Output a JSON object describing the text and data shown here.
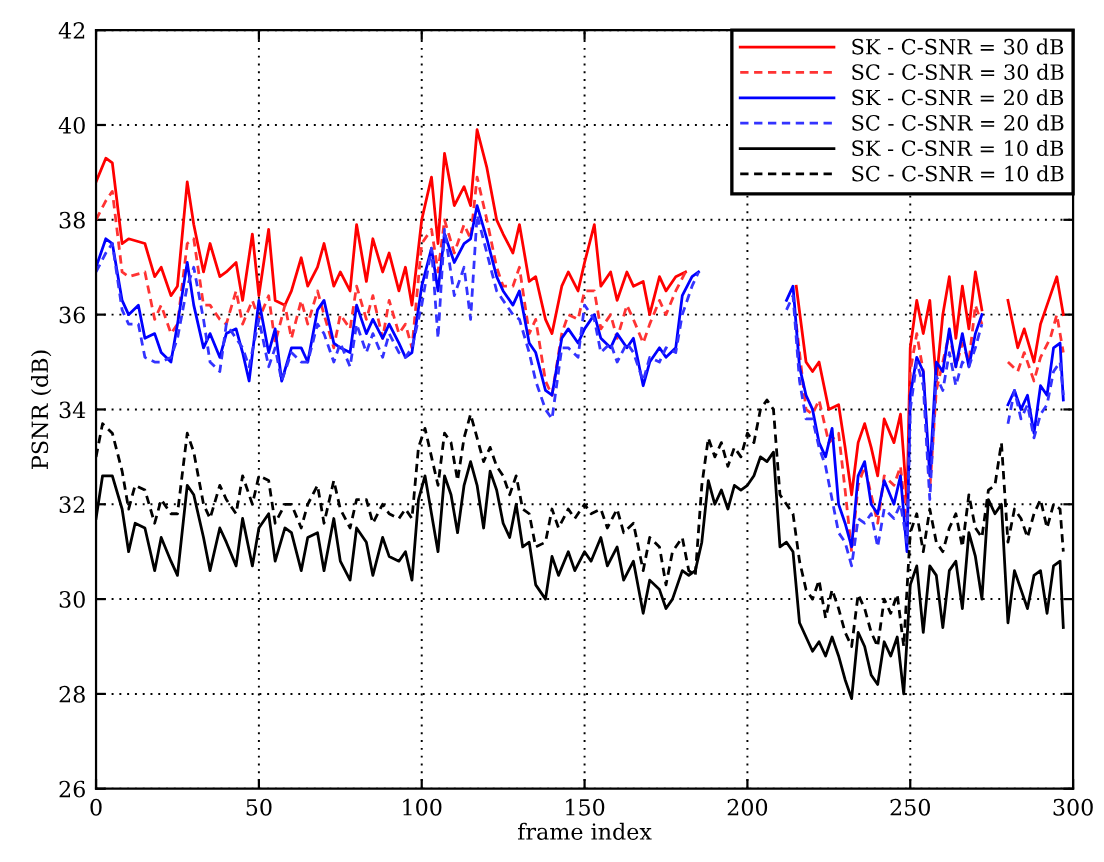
{
  "chart_data": {
    "type": "line",
    "xlabel": "frame index",
    "ylabel": "PSNR (dB)",
    "xlim": [
      0,
      300
    ],
    "ylim": [
      26,
      42
    ],
    "xticks": [
      0,
      50,
      100,
      150,
      200,
      250,
      300
    ],
    "yticks": [
      26,
      28,
      30,
      32,
      34,
      36,
      38,
      40,
      42
    ],
    "grid": true,
    "legend": "top right",
    "series": [
      {
        "name": "SK - C-SNR = 30 dB",
        "color": "#ff0000",
        "line_style": "solid",
        "x": [
          0,
          3,
          5,
          8,
          10,
          15,
          18,
          20,
          23,
          25,
          28,
          30,
          33,
          35,
          38,
          40,
          43,
          45,
          48,
          50,
          53,
          55,
          58,
          60,
          63,
          65,
          68,
          70,
          73,
          75,
          78,
          80,
          83,
          85,
          88,
          90,
          93,
          95,
          97,
          100,
          103,
          105,
          107,
          110,
          113,
          115,
          117,
          120,
          123,
          125,
          128,
          130,
          133,
          135,
          138,
          140,
          143,
          145,
          148,
          150,
          153,
          155,
          158,
          160,
          163,
          165,
          168,
          170,
          173,
          175,
          178,
          181,
          183,
          212,
          215,
          218,
          220,
          222,
          225,
          228,
          230,
          232,
          234,
          236,
          238,
          240,
          242,
          245,
          247,
          248,
          249,
          250,
          252,
          254,
          256,
          258,
          260,
          262,
          264,
          266,
          268,
          270,
          272,
          274,
          280,
          283,
          285,
          288,
          290,
          293,
          295,
          297
        ],
        "values": [
          38.8,
          39.3,
          39.2,
          37.5,
          37.6,
          37.5,
          36.8,
          37,
          36.4,
          36.6,
          38.8,
          37.9,
          36.9,
          37.5,
          36.8,
          36.9,
          37.1,
          36.3,
          37.7,
          36.4,
          37.8,
          36.3,
          36.2,
          36.5,
          37.2,
          36.6,
          37.0,
          37.5,
          36.6,
          36.9,
          36.5,
          37.9,
          36.7,
          37.6,
          36.9,
          37.3,
          36.5,
          37.0,
          36.2,
          38.0,
          38.9,
          37.5,
          39.4,
          38.3,
          38.7,
          38.3,
          39.9,
          39.1,
          38.0,
          37.7,
          37.3,
          37.9,
          36.7,
          36.8,
          35.9,
          35.6,
          36.6,
          36.9,
          36.5,
          37.1,
          37.9,
          36.6,
          36.9,
          36.3,
          36.9,
          36.6,
          36.7,
          36.0,
          36.8,
          36.5,
          36.8,
          36.9,
          null,
          null,
          36.6,
          35.0,
          34.8,
          35.0,
          34.0,
          34.1,
          33.2,
          32.2,
          33.3,
          33.7,
          33.2,
          32.6,
          33.8,
          33.3,
          33.9,
          33.0,
          32.0,
          35.3,
          36.3,
          35.6,
          36.3,
          34.6,
          36.0,
          36.8,
          35.5,
          36.6,
          35.7,
          36.9,
          36.1,
          null,
          36.3,
          35.3,
          35.7,
          35.0,
          35.8,
          36.4,
          36.8,
          36.0
        ]
      },
      {
        "name": "SC - C-SNR = 30 dB",
        "color": "#ff3333",
        "line_style": "dashed",
        "x": [
          0,
          3,
          5,
          8,
          10,
          15,
          18,
          20,
          23,
          25,
          28,
          30,
          33,
          35,
          38,
          40,
          43,
          45,
          48,
          50,
          53,
          55,
          58,
          60,
          63,
          65,
          68,
          70,
          73,
          75,
          78,
          80,
          83,
          85,
          88,
          90,
          93,
          95,
          97,
          100,
          103,
          105,
          107,
          110,
          113,
          115,
          117,
          120,
          123,
          125,
          128,
          130,
          133,
          135,
          138,
          140,
          143,
          145,
          148,
          150,
          153,
          155,
          158,
          160,
          163,
          165,
          168,
          170,
          173,
          175,
          178,
          181,
          183,
          213,
          215,
          218,
          220,
          222,
          225,
          228,
          230,
          232,
          234,
          236,
          238,
          240,
          242,
          245,
          247,
          249,
          250,
          252,
          254,
          256,
          258,
          260,
          262,
          264,
          266,
          268,
          270,
          272,
          274,
          280,
          283,
          285,
          288,
          290,
          293,
          295,
          297
        ],
        "values": [
          38.0,
          38.4,
          38.6,
          36.9,
          36.8,
          36.9,
          35.9,
          36.2,
          35.6,
          35.8,
          37.5,
          37.6,
          36.2,
          36.2,
          35.9,
          35.8,
          36.5,
          35.8,
          36.3,
          35.9,
          36.4,
          35.4,
          36.2,
          35.5,
          36.3,
          35.8,
          36.5,
          36.0,
          35.3,
          36.0,
          35.7,
          36.6,
          35.9,
          36.4,
          35.5,
          36.3,
          35.6,
          35.8,
          35.3,
          37.5,
          37.8,
          36.9,
          38.0,
          37.3,
          37.9,
          37.6,
          38.9,
          38.0,
          37.0,
          36.6,
          36.6,
          37.0,
          35.6,
          35.9,
          34.6,
          34.3,
          35.6,
          36.0,
          35.9,
          36.5,
          36.5,
          35.7,
          36.0,
          35.5,
          36.2,
          35.9,
          35.4,
          35.8,
          36.3,
          36.0,
          36.5,
          36.9,
          null,
          null,
          35.8,
          34.0,
          33.9,
          34.2,
          33.3,
          33.5,
          32.3,
          31.0,
          32.4,
          32.8,
          32.2,
          31.6,
          32.6,
          32.4,
          32.8,
          31.5,
          34.8,
          35.6,
          34.8,
          32.3,
          34.4,
          35.0,
          35.6,
          34.9,
          35.4,
          35.0,
          36.2,
          35.8,
          null,
          35.0,
          34.8,
          35.2,
          34.6,
          35.1,
          35.5,
          36.0,
          35.2
        ]
      },
      {
        "name": "SK - C-SNR = 20 dB",
        "color": "#0000ff",
        "line_style": "solid",
        "x": [
          0,
          3,
          5,
          8,
          10,
          13,
          15,
          18,
          20,
          23,
          25,
          28,
          30,
          33,
          35,
          38,
          40,
          43,
          45,
          47,
          50,
          53,
          55,
          57,
          60,
          63,
          65,
          68,
          70,
          73,
          75,
          78,
          80,
          83,
          85,
          88,
          90,
          93,
          95,
          97,
          100,
          103,
          105,
          107,
          110,
          113,
          115,
          117,
          120,
          123,
          125,
          128,
          130,
          133,
          135,
          138,
          140,
          143,
          145,
          148,
          150,
          153,
          155,
          158,
          160,
          163,
          165,
          168,
          170,
          173,
          175,
          178,
          180,
          183,
          185,
          187,
          210,
          212,
          214,
          216,
          218,
          220,
          222,
          224,
          226,
          228,
          230,
          232,
          234,
          236,
          238,
          240,
          242,
          245,
          247,
          249,
          250,
          252,
          254,
          256,
          258,
          260,
          262,
          264,
          266,
          268,
          270,
          272,
          274,
          280,
          282,
          284,
          286,
          288,
          290,
          292,
          294,
          296,
          297
        ],
        "values": [
          37.0,
          37.6,
          37.5,
          36.3,
          36.0,
          36.2,
          35.5,
          35.6,
          35.2,
          35.0,
          35.8,
          37.1,
          36.2,
          35.3,
          35.6,
          35.1,
          35.6,
          35.7,
          35.2,
          34.6,
          36.3,
          35.2,
          35.7,
          34.6,
          35.3,
          35.3,
          35.0,
          36.1,
          36.3,
          35.4,
          35.3,
          35.2,
          36.2,
          35.6,
          35.9,
          35.5,
          35.8,
          35.4,
          35.1,
          35.2,
          36.6,
          37.4,
          36.5,
          37.7,
          37.1,
          37.5,
          37.6,
          38.3,
          37.6,
          36.8,
          36.5,
          36.2,
          36.5,
          35.4,
          35.2,
          34.4,
          34.3,
          35.5,
          35.7,
          35.4,
          35.7,
          36.0,
          35.5,
          35.3,
          35.6,
          35.3,
          35.5,
          34.5,
          35.0,
          35.3,
          35.1,
          35.3,
          36.4,
          36.8,
          36.9,
          null,
          null,
          36.3,
          36.6,
          34.9,
          34.3,
          34.0,
          33.3,
          33.0,
          33.6,
          32.0,
          31.6,
          31.1,
          32.6,
          32.9,
          32.0,
          31.8,
          32.5,
          32.0,
          32.6,
          31.0,
          34.3,
          35.1,
          34.8,
          32.6,
          35.0,
          34.8,
          35.7,
          34.9,
          35.6,
          34.9,
          35.6,
          36.0,
          null,
          34.1,
          34.4,
          34.0,
          34.3,
          33.5,
          34.5,
          34.3,
          35.3,
          35.4,
          34.2
        ]
      },
      {
        "name": "SC - C-SNR = 20 dB",
        "color": "#3333ff",
        "line_style": "dashed",
        "x": [
          0,
          3,
          5,
          8,
          10,
          13,
          15,
          18,
          20,
          23,
          25,
          28,
          30,
          33,
          35,
          38,
          40,
          43,
          45,
          47,
          50,
          53,
          55,
          57,
          60,
          63,
          65,
          68,
          70,
          73,
          75,
          78,
          80,
          83,
          85,
          88,
          90,
          93,
          95,
          97,
          100,
          103,
          105,
          107,
          110,
          113,
          115,
          117,
          120,
          123,
          125,
          128,
          130,
          133,
          135,
          138,
          140,
          143,
          145,
          148,
          150,
          153,
          155,
          158,
          160,
          163,
          165,
          168,
          170,
          173,
          175,
          178,
          180,
          183,
          185,
          187,
          210,
          212,
          214,
          216,
          218,
          220,
          222,
          224,
          226,
          228,
          230,
          232,
          234,
          236,
          238,
          240,
          242,
          245,
          247,
          249,
          250,
          252,
          254,
          256,
          258,
          260,
          262,
          264,
          266,
          268,
          270,
          272,
          274,
          280,
          282,
          284,
          286,
          288,
          290,
          292,
          294,
          296,
          297
        ],
        "values": [
          36.9,
          37.3,
          37.5,
          36.1,
          35.8,
          35.8,
          35.1,
          35.0,
          35.0,
          35.1,
          35.5,
          36.6,
          37.0,
          35.9,
          35.0,
          34.8,
          35.8,
          35.5,
          35.3,
          34.9,
          35.9,
          34.9,
          35.3,
          34.6,
          35.2,
          35.0,
          35.0,
          35.8,
          35.6,
          35.0,
          35.4,
          34.9,
          35.8,
          35.2,
          35.6,
          35.1,
          35.6,
          35.2,
          35.1,
          35.3,
          36.2,
          37.4,
          35.5,
          37.8,
          36.4,
          37.0,
          35.9,
          38.1,
          37.3,
          36.5,
          36.3,
          36.0,
          35.9,
          35.2,
          34.6,
          34.0,
          33.8,
          35.3,
          35.3,
          35.1,
          36.2,
          35.9,
          35.2,
          35.4,
          35.0,
          35.4,
          35.2,
          34.6,
          35.1,
          35.0,
          35.3,
          35.2,
          36.0,
          36.6,
          36.9,
          null,
          null,
          36.1,
          36.4,
          34.6,
          33.8,
          33.8,
          33.2,
          32.8,
          32.1,
          31.4,
          31.2,
          30.7,
          31.7,
          31.6,
          31.8,
          31.1,
          31.9,
          31.7,
          32.0,
          31.2,
          34.0,
          35.0,
          34.5,
          32.1,
          34.7,
          34.4,
          35.2,
          34.5,
          35.0,
          34.9,
          35.3,
          35.8,
          null,
          33.7,
          34.4,
          33.8,
          34.1,
          33.4,
          33.9,
          34.1,
          34.8,
          35.0,
          34.3
        ]
      },
      {
        "name": "SK - C-SNR = 10 dB",
        "color": "#000000",
        "line_style": "solid",
        "x": [
          0,
          2,
          5,
          8,
          10,
          12,
          15,
          18,
          20,
          23,
          25,
          28,
          30,
          33,
          35,
          38,
          40,
          43,
          45,
          48,
          50,
          53,
          55,
          58,
          60,
          63,
          65,
          68,
          70,
          73,
          75,
          78,
          80,
          83,
          85,
          88,
          90,
          93,
          95,
          97,
          99,
          101,
          103,
          105,
          107,
          109,
          111,
          113,
          115,
          117,
          119,
          121,
          123,
          125,
          127,
          129,
          131,
          133,
          135,
          138,
          140,
          142,
          145,
          147,
          150,
          152,
          155,
          157,
          160,
          162,
          165,
          168,
          170,
          173,
          175,
          177,
          180,
          182,
          184,
          186,
          188,
          190,
          192,
          194,
          196,
          198,
          200,
          202,
          204,
          206,
          208,
          210,
          212,
          214,
          216,
          218,
          220,
          222,
          224,
          226,
          228,
          230,
          232,
          234,
          236,
          238,
          240,
          242,
          244,
          246,
          248,
          250,
          252,
          254,
          256,
          258,
          260,
          262,
          264,
          266,
          268,
          270,
          272,
          274,
          276,
          278,
          280,
          282,
          284,
          286,
          288,
          290,
          292,
          294,
          296,
          297
        ],
        "values": [
          31.7,
          32.6,
          32.6,
          31.9,
          31.0,
          31.6,
          31.5,
          30.6,
          31.3,
          30.8,
          30.5,
          32.4,
          32.2,
          31.3,
          30.6,
          31.5,
          31.2,
          30.7,
          31.7,
          30.7,
          31.5,
          31.8,
          30.8,
          31.5,
          31.4,
          30.6,
          31.3,
          31.4,
          30.6,
          31.7,
          30.8,
          30.4,
          31.5,
          31.2,
          30.5,
          31.3,
          30.9,
          30.8,
          31.0,
          30.4,
          32.1,
          32.6,
          31.8,
          31.0,
          32.6,
          32.2,
          31.4,
          32.4,
          32.9,
          32.4,
          31.5,
          32.7,
          32.3,
          31.6,
          31.3,
          32.0,
          31.1,
          31.2,
          30.3,
          30.0,
          30.9,
          30.5,
          31.0,
          30.6,
          31.0,
          30.8,
          31.3,
          30.7,
          31.1,
          30.4,
          30.8,
          29.7,
          30.4,
          30.2,
          29.8,
          30.0,
          30.6,
          30.5,
          30.6,
          31.2,
          32.5,
          32.0,
          32.3,
          31.9,
          32.4,
          32.3,
          32.4,
          32.6,
          33.0,
          32.9,
          33.1,
          31.1,
          31.2,
          31.0,
          29.5,
          29.2,
          28.9,
          29.1,
          28.8,
          29.2,
          28.8,
          28.3,
          27.9,
          29.3,
          29.0,
          28.4,
          28.2,
          29.1,
          28.8,
          29.2,
          28.0,
          30.3,
          30.7,
          29.3,
          30.7,
          30.5,
          29.4,
          30.6,
          30.8,
          29.8,
          31.4,
          30.9,
          30.0,
          32.1,
          31.8,
          32.0,
          29.5,
          30.6,
          30.2,
          29.8,
          30.5,
          30.6,
          29.7,
          30.7,
          30.8,
          29.4
        ]
      },
      {
        "name": "SC - C-SNR = 10 dB",
        "color": "#000000",
        "line_style": "dashed",
        "x": [
          0,
          2,
          5,
          8,
          10,
          12,
          15,
          18,
          20,
          23,
          25,
          28,
          30,
          33,
          35,
          38,
          40,
          43,
          45,
          48,
          50,
          53,
          55,
          58,
          60,
          63,
          65,
          68,
          70,
          73,
          75,
          78,
          80,
          83,
          85,
          88,
          90,
          93,
          95,
          97,
          99,
          101,
          103,
          105,
          107,
          109,
          111,
          113,
          115,
          117,
          119,
          121,
          123,
          125,
          127,
          129,
          131,
          133,
          135,
          138,
          140,
          142,
          145,
          147,
          150,
          152,
          155,
          157,
          160,
          162,
          165,
          168,
          170,
          173,
          175,
          177,
          180,
          182,
          184,
          186,
          188,
          190,
          192,
          194,
          196,
          198,
          200,
          202,
          204,
          206,
          208,
          210,
          212,
          214,
          216,
          218,
          220,
          222,
          224,
          226,
          228,
          230,
          232,
          234,
          236,
          238,
          240,
          242,
          244,
          246,
          248,
          250,
          252,
          254,
          256,
          258,
          260,
          262,
          264,
          266,
          268,
          270,
          272,
          274,
          276,
          278,
          280,
          282,
          284,
          286,
          288,
          290,
          292,
          294,
          296,
          297
        ],
        "values": [
          33.0,
          33.7,
          33.5,
          32.7,
          31.9,
          32.4,
          32.3,
          31.6,
          32.1,
          31.8,
          31.8,
          33.5,
          33.1,
          32.0,
          31.7,
          32.4,
          32.1,
          31.8,
          32.6,
          32.0,
          32.6,
          32.5,
          31.6,
          32.0,
          32.0,
          31.5,
          32.0,
          32.4,
          31.6,
          32.5,
          31.9,
          31.5,
          32.1,
          32.1,
          31.6,
          32.0,
          31.8,
          31.7,
          31.9,
          31.7,
          33.2,
          33.6,
          33.0,
          32.4,
          33.5,
          33.3,
          32.5,
          33.4,
          33.9,
          33.4,
          32.9,
          33.2,
          32.8,
          32.6,
          32.2,
          32.6,
          31.9,
          31.8,
          31.1,
          31.2,
          31.9,
          31.5,
          31.9,
          31.7,
          32.0,
          31.8,
          31.9,
          31.5,
          31.9,
          31.4,
          31.6,
          30.6,
          31.3,
          31.1,
          30.3,
          31.0,
          31.3,
          30.6,
          30.5,
          32.4,
          33.4,
          33.0,
          33.3,
          32.8,
          33.2,
          33.0,
          33.5,
          33.3,
          34.0,
          34.2,
          34.0,
          32.2,
          32.0,
          31.8,
          30.8,
          30.2,
          30.0,
          30.4,
          29.6,
          30.2,
          29.8,
          29.3,
          29.0,
          30.1,
          29.8,
          29.3,
          29.0,
          30.0,
          29.7,
          30.1,
          29.0,
          31.4,
          31.8,
          31.0,
          31.9,
          31.2,
          31.0,
          31.5,
          31.8,
          31.1,
          32.2,
          31.5,
          31.3,
          32.3,
          32.4,
          33.3,
          31.2,
          31.9,
          31.7,
          31.3,
          31.8,
          32.1,
          31.5,
          32.0,
          31.9,
          31.0
        ]
      }
    ]
  }
}
